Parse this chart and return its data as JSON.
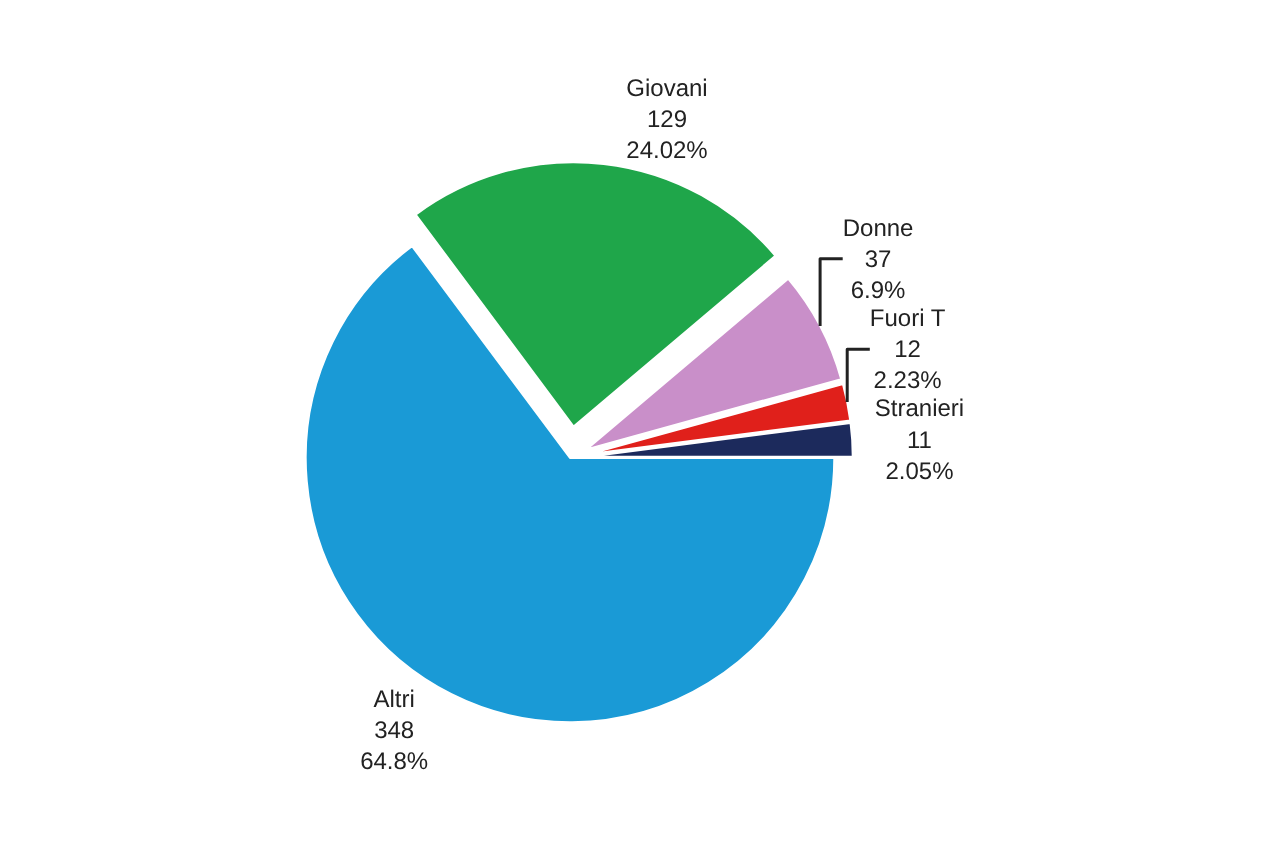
{
  "chart_data": {
    "type": "pie",
    "categories": [
      "Altri",
      "Giovani",
      "Donne",
      "Fuori T",
      "Stranieri"
    ],
    "values": [
      348,
      129,
      37,
      12,
      11
    ],
    "colors": [
      "#1a9ad6",
      "#1fa64a",
      "#c98fc9",
      "#e0201b",
      "#1c2a5c"
    ],
    "value_labels": [
      "348\n64.8%",
      "129\n24.02%",
      "37\n6.9%",
      "12\n2.23%",
      "11\n2.05%"
    ],
    "legend": false
  }
}
